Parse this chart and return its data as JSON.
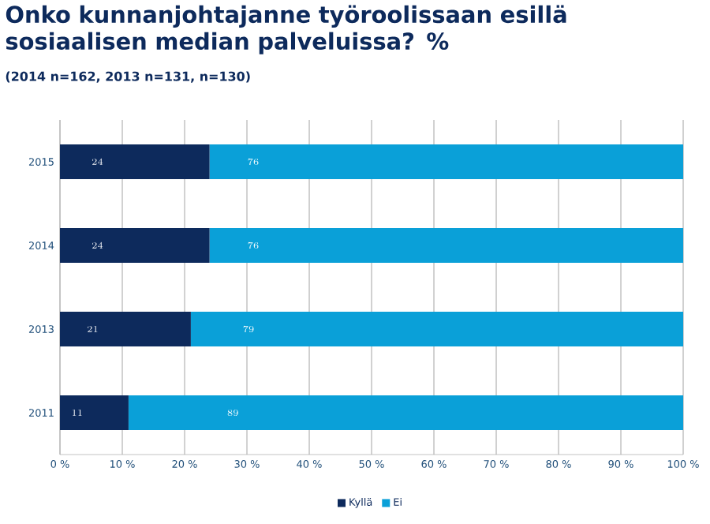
{
  "chart_data": {
    "type": "bar",
    "orientation": "horizontal",
    "stacked": true,
    "title": "Onko kunnanjohtajanne työroolissaan esillä sosiaalisen median palveluissa? %",
    "subtitle": "(2014 n=162, 2013 n=131, n=130)",
    "categories": [
      "2015",
      "2014",
      "2013",
      "2011"
    ],
    "series": [
      {
        "name": "Kyllä",
        "color": "#0d2a5c",
        "values": [
          24,
          24,
          21,
          11
        ]
      },
      {
        "name": "Ei",
        "color": "#0aa0d8",
        "values": [
          76,
          76,
          79,
          89
        ]
      }
    ],
    "xlim": [
      0,
      100
    ],
    "xticks": [
      {
        "value": 0,
        "label": "0 %"
      },
      {
        "value": 10,
        "label": "10 %"
      },
      {
        "value": 20,
        "label": "20 %"
      },
      {
        "value": 30,
        "label": "30 %"
      },
      {
        "value": 40,
        "label": "40 %"
      },
      {
        "value": 50,
        "label": "50 %"
      },
      {
        "value": 60,
        "label": "60 %"
      },
      {
        "value": 70,
        "label": "70 %"
      },
      {
        "value": 80,
        "label": "80 %"
      },
      {
        "value": 90,
        "label": "90 %"
      },
      {
        "value": 100,
        "label": "100 %"
      }
    ],
    "grid": "x",
    "legend": "bottom",
    "data_labels": true
  }
}
